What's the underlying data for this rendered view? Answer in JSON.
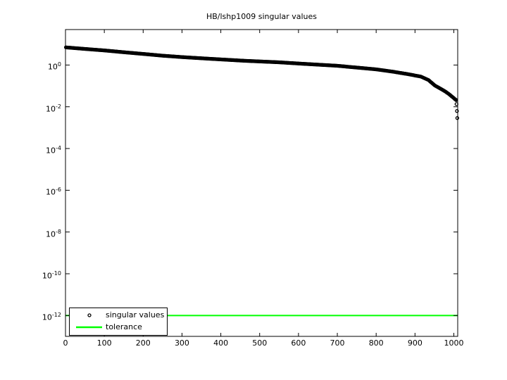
{
  "figure": {
    "background": "#ffffff",
    "axis_color": "#000000"
  },
  "chart_data": {
    "type": "scatter",
    "title": "HB/lshp1009 singular values",
    "xlabel": "",
    "ylabel": "",
    "grid": false,
    "x_axis": {
      "min": 0,
      "max": 1010,
      "ticks": [
        0,
        100,
        200,
        300,
        400,
        500,
        600,
        700,
        800,
        900,
        1000
      ]
    },
    "y_axis": {
      "scale": "log",
      "min": 1e-13,
      "max": 50,
      "tick_exponents": [
        0,
        -2,
        -4,
        -6,
        -8,
        -10,
        -12
      ]
    },
    "legend": {
      "position": "bottom-left",
      "border": true,
      "entries": [
        "singular values",
        "tolerance"
      ]
    },
    "series": [
      {
        "name": "singular values",
        "type": "scatter",
        "marker": "open-circle",
        "color": "#000000",
        "n_points": 1009,
        "profile_points": [
          [
            1,
            7.0
          ],
          [
            50,
            5.9
          ],
          [
            100,
            5.0
          ],
          [
            150,
            4.1
          ],
          [
            200,
            3.4
          ],
          [
            250,
            2.8
          ],
          [
            300,
            2.4
          ],
          [
            370,
            2.0
          ],
          [
            460,
            1.6
          ],
          [
            550,
            1.35
          ],
          [
            610,
            1.15
          ],
          [
            700,
            0.92
          ],
          [
            735,
            0.8
          ],
          [
            800,
            0.62
          ],
          [
            843,
            0.48
          ],
          [
            880,
            0.37
          ],
          [
            915,
            0.28
          ],
          [
            935,
            0.19
          ],
          [
            951,
            0.105
          ],
          [
            969,
            0.068
          ],
          [
            978,
            0.054
          ],
          [
            987,
            0.041
          ],
          [
            996,
            0.03
          ],
          [
            1000,
            0.026
          ],
          [
            1003,
            0.023
          ],
          [
            1005,
            0.022
          ],
          [
            1006,
            0.021
          ],
          [
            1007,
            0.0135
          ],
          [
            1008,
            0.0063
          ],
          [
            1009,
            0.0029
          ]
        ]
      },
      {
        "name": "tolerance",
        "type": "hline",
        "color": "#00ff00",
        "value": 1e-12
      }
    ]
  }
}
